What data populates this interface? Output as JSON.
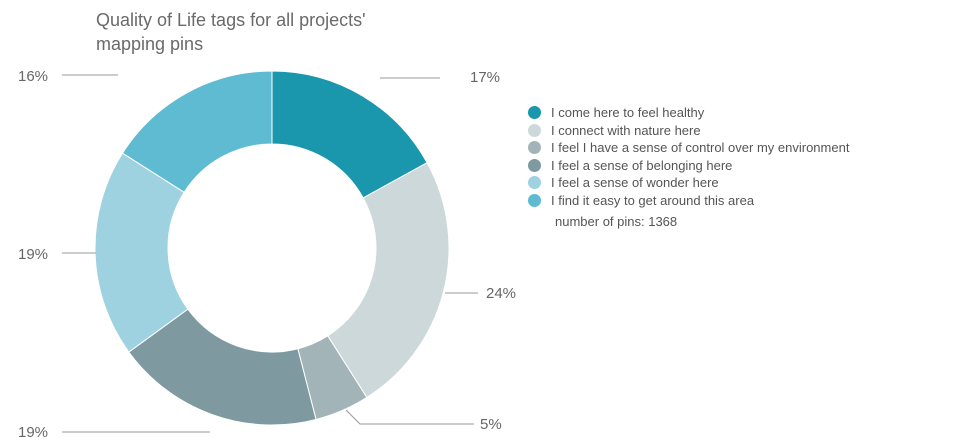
{
  "chart_data": {
    "type": "pie",
    "title_lines": [
      "Quality of Life tags for all projects'",
      "mapping pins"
    ],
    "series": [
      {
        "name": "I come here to feel healthy",
        "value": 17,
        "label": "17%",
        "color": "#1a97ad"
      },
      {
        "name": "I connect with nature here",
        "value": 24,
        "label": "24%",
        "color": "#cdd8da"
      },
      {
        "name": "I feel I have a sense of control over my environment",
        "value": 5,
        "label": "5%",
        "color": "#a3b4b9"
      },
      {
        "name": "I feel a sense of belonging here",
        "value": 19,
        "label": "19%",
        "color": "#7e9aa0"
      },
      {
        "name": "I feel a sense of wonder here",
        "value": 19,
        "label": "19%",
        "color": "#9fd2e0"
      },
      {
        "name": "I find it easy to get around this area",
        "value": 16,
        "label": "16%",
        "color": "#5fbbd1"
      }
    ],
    "note": "number of pins: 1368",
    "legend_position": "right"
  }
}
